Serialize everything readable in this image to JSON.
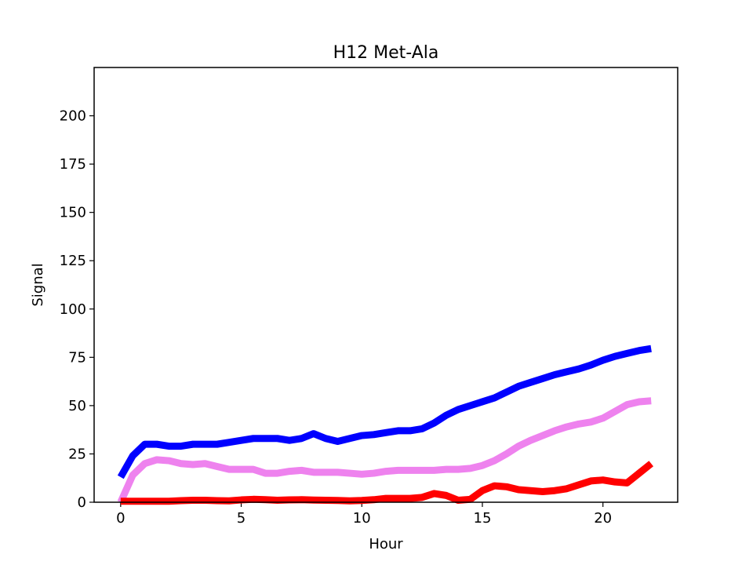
{
  "chart_data": {
    "type": "line",
    "title": "H12 Met-Ala",
    "xlabel": "Hour",
    "ylabel": "Signal",
    "xlim": [
      -1.1,
      23.1
    ],
    "ylim": [
      0,
      225
    ],
    "xticks": [
      0,
      5,
      10,
      15,
      20
    ],
    "yticks": [
      0,
      25,
      50,
      75,
      100,
      125,
      150,
      175,
      200
    ],
    "grid": false,
    "legend": "none",
    "x": [
      0,
      0.5,
      1,
      1.5,
      2,
      2.5,
      3,
      3.5,
      4,
      4.5,
      5,
      5.5,
      6,
      6.5,
      7,
      7.5,
      8,
      8.5,
      9,
      9.5,
      10,
      10.5,
      11,
      11.5,
      12,
      12.5,
      13,
      13.5,
      14,
      14.5,
      15,
      15.5,
      16,
      16.5,
      17,
      17.5,
      18,
      18.5,
      19,
      19.5,
      20,
      20.5,
      21,
      21.5,
      22
    ],
    "series": [
      {
        "color": "#0000ff",
        "values": [
          13,
          24,
          30,
          30,
          29,
          29,
          30,
          30,
          30,
          31,
          32,
          33,
          33,
          33,
          32,
          33,
          35.5,
          33,
          31.5,
          33,
          34.5,
          35,
          36,
          37,
          37,
          38,
          41,
          45,
          48,
          50,
          52,
          54,
          57,
          60,
          62,
          64,
          66,
          67.5,
          69,
          71,
          73.5,
          75.5,
          77,
          78.5,
          79.5
        ]
      },
      {
        "color": "#ee82ee",
        "values": [
          0,
          14,
          20,
          22,
          21.5,
          20,
          19.5,
          20,
          18.5,
          17,
          17,
          17,
          15,
          15,
          16,
          16.5,
          15.5,
          15.5,
          15.5,
          15,
          14.5,
          15,
          16,
          16.5,
          16.5,
          16.5,
          16.5,
          17,
          17,
          17.5,
          19,
          21.5,
          25,
          29,
          32,
          34.5,
          37,
          39,
          40.5,
          41.5,
          43.5,
          47,
          50.5,
          52,
          52.5
        ]
      },
      {
        "color": "#ff0000",
        "values": [
          0.5,
          0.5,
          0.5,
          0.5,
          0.5,
          0.8,
          1,
          1,
          0.8,
          0.7,
          1.2,
          1.5,
          1.3,
          1,
          1.2,
          1.3,
          1.1,
          1,
          0.9,
          0.7,
          0.9,
          1.3,
          2,
          2,
          2,
          2.5,
          4.5,
          3.5,
          1,
          1.5,
          6,
          8.5,
          8,
          6.5,
          6,
          5.5,
          6,
          7,
          9,
          11,
          11.5,
          10.5,
          10,
          15,
          20
        ]
      }
    ]
  }
}
